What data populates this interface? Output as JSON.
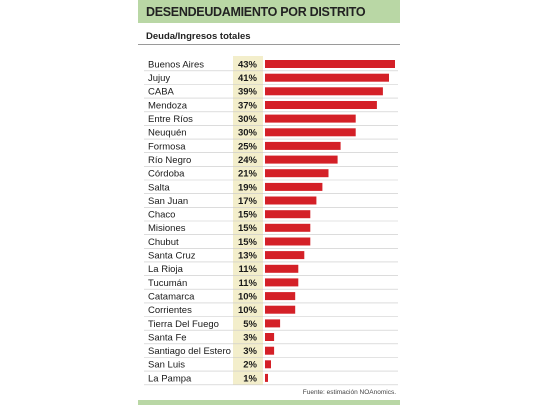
{
  "header": {
    "title": "DESENDEUDAMIENTO POR DISTRITO",
    "subtitle": "Deuda/Ingresos totales"
  },
  "footer": {
    "source": "Fuente: estimación NOAnomics."
  },
  "chart_data": {
    "type": "bar",
    "orientation": "horizontal",
    "title": "DESENDEUDAMIENTO POR DISTRITO",
    "subtitle": "Deuda/Ingresos totales",
    "categories": [
      "Buenos Aires",
      "Jujuy",
      "CABA",
      "Mendoza",
      "Entre Ríos",
      "Neuquén",
      "Formosa",
      "Río Negro",
      "Córdoba",
      "Salta",
      "San Juan",
      "Chaco",
      "Misiones",
      "Chubut",
      "Santa Cruz",
      "La Rioja",
      "Tucumán",
      "Catamarca",
      "Corrientes",
      "Tierra Del Fuego",
      "Santa Fe",
      "Santiago del Estero",
      "San Luis",
      "La Pampa"
    ],
    "values": [
      43,
      41,
      39,
      37,
      30,
      30,
      25,
      24,
      21,
      19,
      17,
      15,
      15,
      15,
      13,
      11,
      11,
      10,
      10,
      5,
      3,
      3,
      2,
      1
    ],
    "value_labels": [
      "43%",
      "41%",
      "39%",
      "37%",
      "30%",
      "30%",
      "25%",
      "24%",
      "21%",
      "19%",
      "17%",
      "15%",
      "15%",
      "15%",
      "13%",
      "11%",
      "11%",
      "10%",
      "10%",
      "5%",
      "3%",
      "3%",
      "2%",
      "1%"
    ],
    "unit": "%",
    "xlim": [
      0,
      43
    ],
    "grid": false,
    "colors": {
      "bar": "#d42027",
      "value_column": "#f3eecb",
      "row_line": "#c8c8c8",
      "header": "#b9d7a5"
    }
  }
}
